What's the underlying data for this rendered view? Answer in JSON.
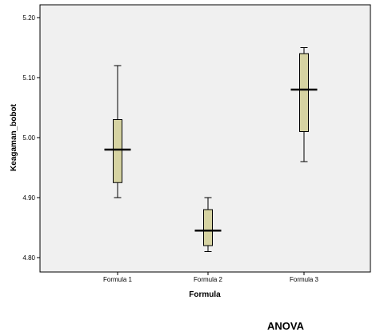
{
  "chart_data": {
    "type": "boxplot",
    "xlabel": "Formula",
    "ylabel": "Keagaman_bobot",
    "ylim": [
      4.78,
      5.21
    ],
    "yticks": [
      4.8,
      4.9,
      5.0,
      5.1,
      5.2
    ],
    "ytick_labels": [
      "4.80",
      "4.90",
      "5.00",
      "5.10",
      "5.20"
    ],
    "categories": [
      "Formula 1",
      "Formula 2",
      "Formula 3"
    ],
    "boxes": [
      {
        "min": 4.9,
        "q1": 4.925,
        "median": 4.98,
        "q3": 5.03,
        "max": 5.12
      },
      {
        "min": 4.81,
        "q1": 4.82,
        "median": 4.845,
        "q3": 4.88,
        "max": 4.9
      },
      {
        "min": 4.96,
        "q1": 5.01,
        "median": 5.08,
        "q3": 5.14,
        "max": 5.15
      }
    ],
    "grid": false,
    "colors": {
      "box_fill": "#d6d3a2",
      "plot_bg": "#f0f0f0",
      "border": "#000000"
    }
  },
  "below_title": "ANOVA"
}
